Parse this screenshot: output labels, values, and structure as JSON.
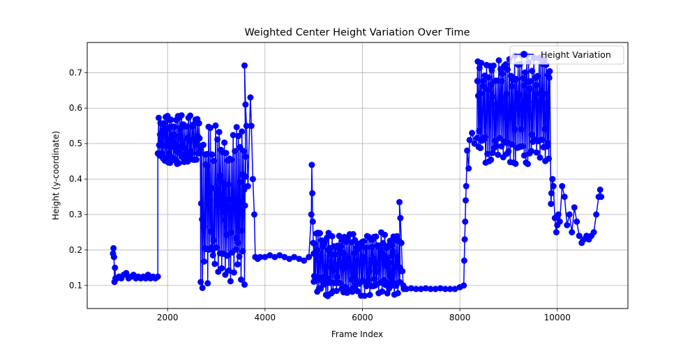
{
  "chart_data": {
    "type": "line",
    "title": "Weighted Center Height Variation Over Time",
    "xlabel": "Frame Index",
    "ylabel": "Height (y-coordinate)",
    "xlim": [
      350,
      11450
    ],
    "ylim": [
      0.035,
      0.785
    ],
    "xticks": [
      2000,
      4000,
      6000,
      8000,
      10000
    ],
    "yticks": [
      0.1,
      0.2,
      0.3,
      0.4,
      0.5,
      0.6,
      0.7
    ],
    "grid": true,
    "legend_position": "top-right",
    "series": [
      {
        "name": "Height Variation",
        "color": "#0000ff",
        "marker": "circle",
        "segments": [
          {
            "type": "points",
            "x": [
              880,
              890,
              900,
              910,
              920,
              930,
              960,
              1000,
              1050,
              1100,
              1150,
              1200,
              1250,
              1300,
              1350,
              1400,
              1450,
              1500,
              1550,
              1600,
              1650,
              1700,
              1750,
              1800
            ],
            "y": [
              0.19,
              0.205,
              0.18,
              0.11,
              0.15,
              0.12,
              0.12,
              0.125,
              0.12,
              0.13,
              0.135,
              0.12,
              0.125,
              0.13,
              0.12,
              0.125,
              0.12,
              0.125,
              0.12,
              0.13,
              0.12,
              0.125,
              0.12,
              0.125
            ]
          },
          {
            "type": "band",
            "x_start": 1800,
            "x_end": 2680,
            "y_min": 0.44,
            "y_max": 0.58
          },
          {
            "type": "band",
            "x_start": 2680,
            "x_end": 3600,
            "y_min": 0.09,
            "y_max": 0.56
          },
          {
            "type": "points",
            "x": [
              3580,
              3600,
              3620,
              3650,
              3700,
              3720,
              3750,
              3780
            ],
            "y": [
              0.72,
              0.61,
              0.55,
              0.38,
              0.63,
              0.55,
              0.4,
              0.3
            ]
          },
          {
            "type": "points",
            "x": [
              3800,
              3850,
              3900,
              4000,
              4100,
              4200,
              4300,
              4400,
              4500,
              4600,
              4700,
              4800,
              4900
            ],
            "y": [
              0.18,
              0.175,
              0.18,
              0.18,
              0.185,
              0.18,
              0.185,
              0.18,
              0.175,
              0.18,
              0.175,
              0.17,
              0.18
            ]
          },
          {
            "type": "points",
            "x": [
              4950,
              4960,
              4970,
              4980,
              4990,
              5000
            ],
            "y": [
              0.3,
              0.44,
              0.36,
              0.28,
              0.22,
              0.19
            ]
          },
          {
            "type": "band",
            "x_start": 5000,
            "x_end": 6780,
            "y_min": 0.07,
            "y_max": 0.25
          },
          {
            "type": "points",
            "x": [
              6760,
              6780,
              6800,
              6820,
              6840
            ],
            "y": [
              0.335,
              0.29,
              0.22,
              0.14,
              0.1
            ]
          },
          {
            "type": "points",
            "x": [
              6850,
              6900,
              7000,
              7100,
              7200,
              7300,
              7400,
              7500,
              7600,
              7700,
              7800,
              7900,
              8000,
              8080
            ],
            "y": [
              0.09,
              0.09,
              0.092,
              0.09,
              0.09,
              0.092,
              0.09,
              0.09,
              0.092,
              0.09,
              0.09,
              0.09,
              0.095,
              0.1
            ]
          },
          {
            "type": "points",
            "x": [
              8090,
              8100,
              8110,
              8120,
              8130,
              8150,
              8180,
              8200,
              8250,
              8300
            ],
            "y": [
              0.17,
              0.23,
              0.28,
              0.34,
              0.38,
              0.48,
              0.43,
              0.51,
              0.53,
              0.5
            ]
          },
          {
            "type": "band",
            "x_start": 8350,
            "x_end": 9850,
            "y_min": 0.44,
            "y_max": 0.75
          },
          {
            "type": "points",
            "x": [
              9870,
              9880,
              9900,
              9920,
              9950,
              9980,
              10000,
              10020,
              10050,
              10100,
              10150,
              10200,
              10250,
              10300,
              10350,
              10400,
              10450,
              10500,
              10550,
              10600,
              10650,
              10700,
              10750,
              10800,
              10850,
              10880,
              10900
            ],
            "y": [
              0.33,
              0.36,
              0.4,
              0.38,
              0.29,
              0.25,
              0.27,
              0.3,
              0.28,
              0.38,
              0.35,
              0.27,
              0.3,
              0.25,
              0.32,
              0.28,
              0.24,
              0.22,
              0.23,
              0.24,
              0.23,
              0.24,
              0.25,
              0.3,
              0.35,
              0.37,
              0.35
            ]
          }
        ]
      }
    ]
  }
}
